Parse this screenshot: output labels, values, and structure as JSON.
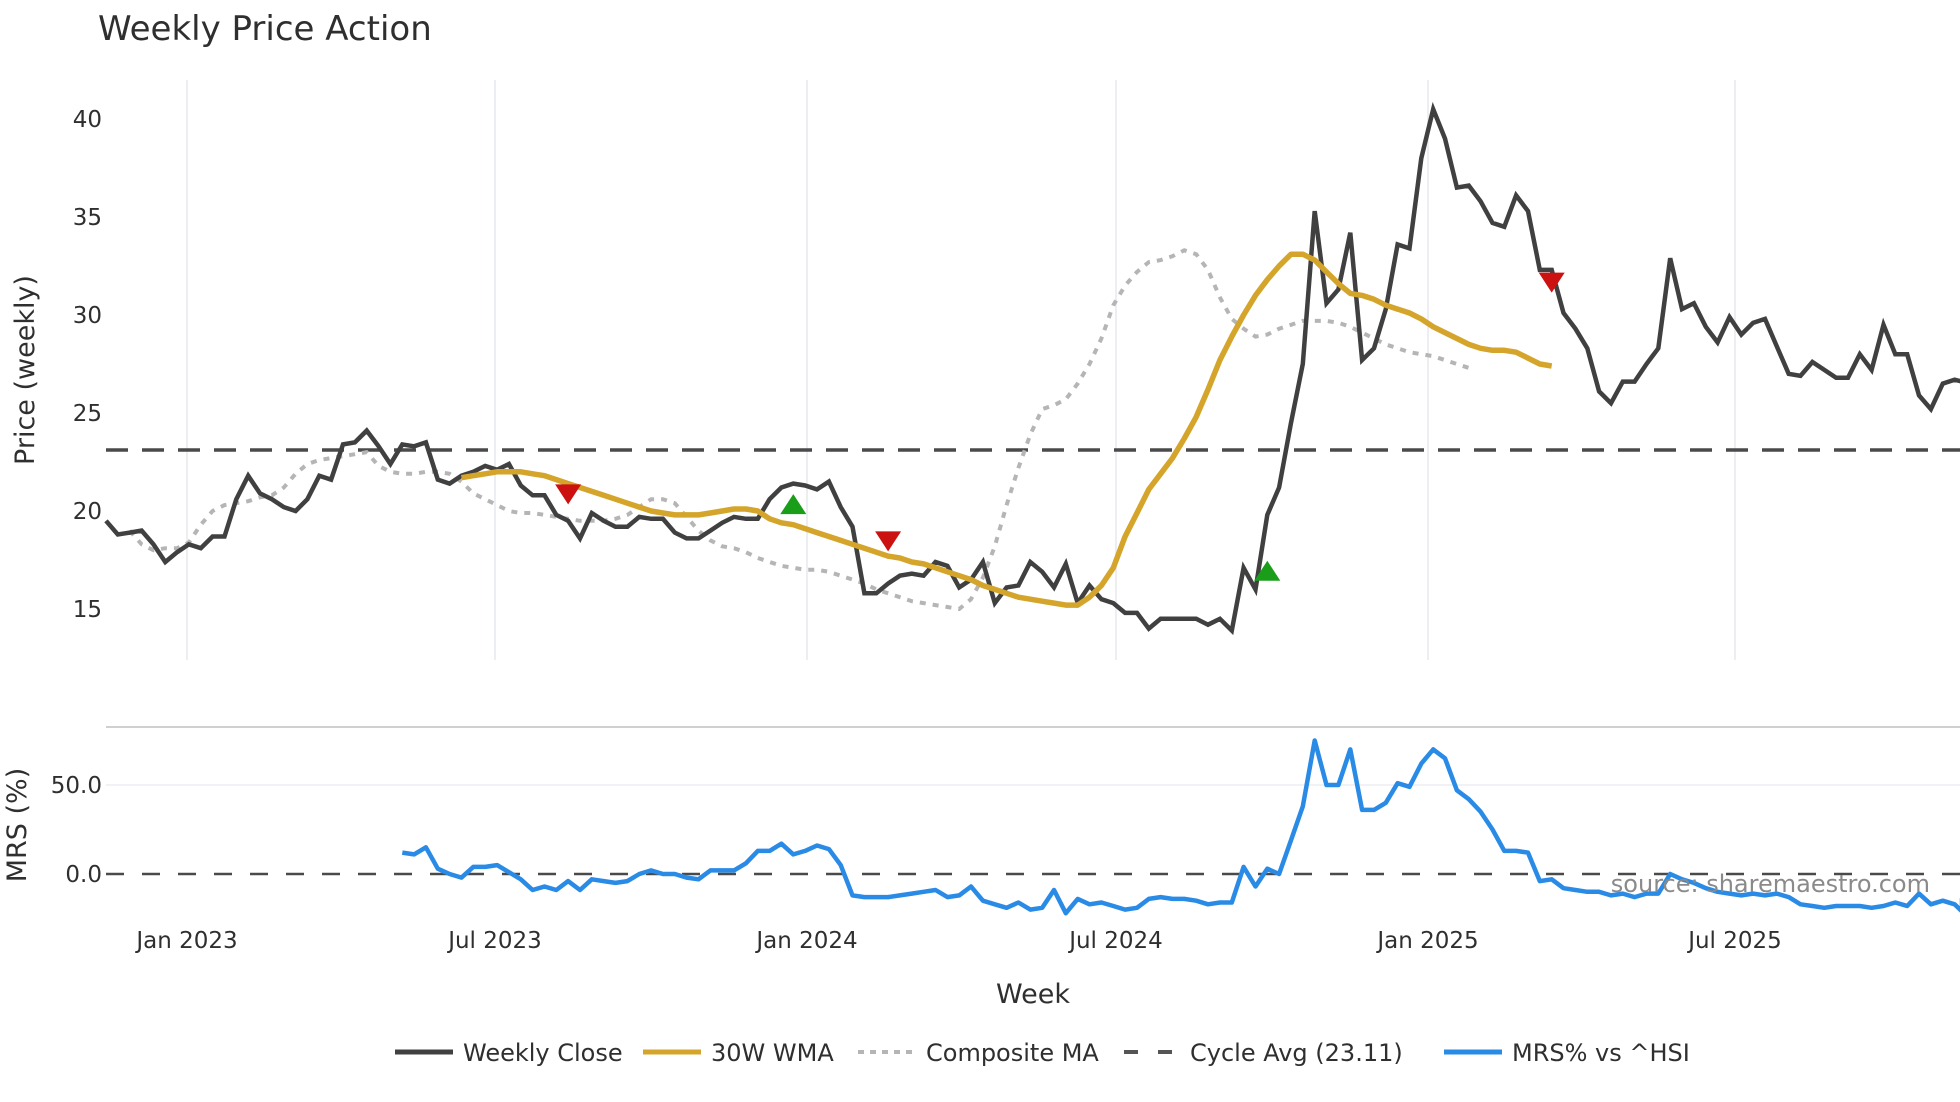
{
  "title": "Weekly Price Action",
  "top_panel": {
    "ylabel": "Price (weekly)",
    "yticks": [
      15,
      20,
      25,
      30,
      35,
      40
    ]
  },
  "bottom_panel": {
    "ylabel": "MRS (%)",
    "yticks": [
      "0.0",
      "50.0"
    ]
  },
  "xaxis": {
    "label": "Week",
    "ticks": [
      "Jan 2023",
      "Jul 2023",
      "Jan 2024",
      "Jul 2024",
      "Jan 2025",
      "Jul 2025"
    ]
  },
  "legend": {
    "items": [
      {
        "label": "Weekly Close",
        "color": "#404040",
        "style": "solid"
      },
      {
        "label": "30W WMA",
        "color": "#d4a52a",
        "style": "solid"
      },
      {
        "label": "Composite MA",
        "color": "#b5b5b5",
        "style": "dotted"
      },
      {
        "label": "Cycle Avg (23.11)",
        "color": "#555555",
        "style": "dashed"
      },
      {
        "label": "MRS% vs ^HSI",
        "color": "#2a8be6",
        "style": "solid"
      }
    ]
  },
  "source_note": "source: sharemaestro.com",
  "colors": {
    "close": "#404040",
    "wma": "#d4a52a",
    "composite": "#b5b5b5",
    "cycle": "#4a4a4a",
    "mrs": "#2a8be6",
    "buy": "#1a9e1a",
    "sell": "#cc1111",
    "grid": "#e8eaee"
  },
  "chart_data": [
    {
      "type": "line",
      "title": "Weekly Price Action",
      "xlabel": "Week",
      "ylabel": "Price (weekly)",
      "ylim": [
        12.5,
        42
      ],
      "x_ticks": [
        "Jan 2023",
        "Jul 2023",
        "Jan 2024",
        "Jul 2024",
        "Jan 2025",
        "Jul 2025"
      ],
      "x_range": [
        "Nov 2022",
        "Nov 2025"
      ],
      "grid": "vertical",
      "legend_position": "bottom",
      "cycle_avg": 23.11,
      "series": [
        {
          "name": "Weekly Close",
          "values": [
            19.5,
            18.8,
            18.9,
            19.0,
            18.3,
            17.4,
            17.9,
            18.3,
            18.1,
            18.7,
            18.7,
            20.6,
            21.8,
            20.9,
            20.6,
            20.2,
            20.0,
            20.6,
            21.8,
            21.6,
            23.4,
            23.5,
            24.1,
            23.3,
            22.4,
            23.4,
            23.3,
            23.5,
            21.6,
            21.4,
            21.8,
            22.0,
            22.3,
            22.1,
            22.4,
            21.3,
            20.8,
            20.8,
            19.8,
            19.5,
            18.6,
            19.9,
            19.5,
            19.2,
            19.2,
            19.7,
            19.6,
            19.6,
            18.9,
            18.6,
            18.6,
            19.0,
            19.4,
            19.7,
            19.6,
            19.6,
            20.6,
            21.2,
            21.4,
            21.3,
            21.1,
            21.5,
            20.2,
            19.2,
            15.8,
            15.8,
            16.3,
            16.7,
            16.8,
            16.7,
            17.4,
            17.2,
            16.1,
            16.5,
            17.4,
            15.3,
            16.1,
            16.2,
            17.4,
            16.9,
            16.1,
            17.3,
            15.3,
            16.2,
            15.5,
            15.3,
            14.8,
            14.8,
            14.0,
            14.5,
            14.5,
            14.5,
            14.5,
            14.2,
            14.5,
            13.9,
            17.1,
            16.0,
            19.8,
            21.2,
            24.5,
            27.5,
            35.3,
            30.6,
            31.3,
            34.2,
            27.7,
            28.3,
            30.3,
            33.6,
            33.4,
            38.0,
            40.5,
            39.0,
            36.5,
            36.6,
            35.8,
            34.7,
            34.5,
            36.1,
            35.3,
            32.3,
            32.3,
            30.1,
            29.3,
            28.3,
            26.1,
            25.5,
            26.6,
            26.6,
            27.5,
            28.3,
            32.9,
            30.3,
            30.6,
            29.4,
            28.6,
            29.9,
            29.0,
            29.6,
            29.8,
            28.4,
            27.0,
            26.9,
            27.6,
            27.2,
            26.8,
            26.8,
            28.0,
            27.2,
            29.5,
            28.0,
            28.0,
            25.9,
            25.2,
            26.5,
            26.7,
            26.6
          ]
        },
        {
          "name": "30W WMA",
          "start_index": 30,
          "values": [
            21.7,
            21.8,
            21.9,
            22.0,
            22.0,
            22.0,
            21.9,
            21.8,
            21.6,
            21.4,
            21.2,
            21.0,
            20.8,
            20.6,
            20.4,
            20.2,
            20.0,
            19.9,
            19.8,
            19.8,
            19.8,
            19.9,
            20.0,
            20.1,
            20.1,
            20.0,
            19.6,
            19.4,
            19.3,
            19.1,
            18.9,
            18.7,
            18.5,
            18.3,
            18.1,
            17.9,
            17.7,
            17.6,
            17.4,
            17.3,
            17.1,
            16.9,
            16.7,
            16.5,
            16.2,
            16.0,
            15.8,
            15.6,
            15.5,
            15.4,
            15.3,
            15.2,
            15.2,
            15.6,
            16.2,
            17.1,
            18.7,
            19.9,
            21.1,
            21.9,
            22.7,
            23.7,
            24.8,
            26.2,
            27.7,
            28.9,
            30.0,
            31.0,
            31.8,
            32.5,
            33.1,
            33.1,
            32.8,
            32.2,
            31.6,
            31.1,
            31.0,
            30.8,
            30.5,
            30.3,
            30.1,
            29.8,
            29.4,
            29.1,
            28.8,
            28.5,
            28.3,
            28.2,
            28.2,
            28.1,
            27.8,
            27.5,
            27.4
          ]
        },
        {
          "name": "Composite MA",
          "start_index": 2,
          "values": [
            null,
            null,
            19.0,
            18.3,
            18.0,
            18.1,
            18.1,
            18.4,
            19.3,
            20.0,
            20.3,
            20.4,
            20.5,
            20.7,
            20.8,
            21.2,
            21.9,
            22.4,
            22.6,
            22.7,
            22.8,
            22.9,
            23.0,
            22.3,
            22.0,
            21.9,
            21.9,
            22.0,
            22.0,
            21.9,
            21.5,
            20.9,
            20.6,
            20.3,
            20.0,
            19.9,
            19.9,
            19.8,
            19.7,
            19.6,
            19.5,
            19.5,
            19.5,
            19.6,
            19.8,
            20.2,
            20.6,
            20.6,
            20.4,
            19.7,
            19.0,
            18.5,
            18.2,
            18.1,
            17.9,
            17.6,
            17.4,
            17.2,
            17.1,
            17.0,
            17.0,
            16.9,
            16.7,
            16.5,
            16.3,
            16.0,
            15.8,
            15.6,
            15.4,
            15.3,
            15.2,
            15.1,
            15.0,
            15.5,
            16.6,
            18.2,
            20.3,
            22.2,
            23.9,
            25.2,
            25.4,
            25.7,
            26.5,
            27.5,
            28.8,
            30.5,
            31.5,
            32.2,
            32.7,
            32.8,
            33.0,
            33.3,
            33.1,
            32.3,
            30.9,
            29.8,
            29.3,
            28.9,
            29.0,
            29.3,
            29.5,
            29.7,
            29.7,
            29.7,
            29.6,
            29.4,
            29.1,
            28.8,
            28.5,
            28.3,
            28.1,
            28.0,
            27.9,
            27.7,
            27.5,
            27.3
          ]
        },
        {
          "name": "Cycle Avg (23.11)",
          "values": [
            23.11
          ]
        }
      ],
      "signals": [
        {
          "type": "sell",
          "index": 39,
          "value": 20.9
        },
        {
          "type": "buy",
          "index": 58,
          "value": 20.3
        },
        {
          "type": "sell",
          "index": 66,
          "value": 18.5
        },
        {
          "type": "buy",
          "index": 98,
          "value": 16.9
        },
        {
          "type": "sell",
          "index": 122,
          "value": 31.7
        }
      ]
    },
    {
      "type": "line",
      "ylabel": "MRS (%)",
      "ylim": [
        -30,
        85
      ],
      "yticks": [
        0.0,
        50.0
      ],
      "zero_line": "dashed",
      "series": [
        {
          "name": "MRS% vs ^HSI",
          "start_index": 25,
          "values": [
            12,
            11,
            15,
            3,
            0,
            -2,
            4,
            4,
            5,
            1,
            -3,
            -9,
            -7,
            -9,
            -4,
            -9,
            -3,
            -4,
            -5,
            -4,
            0,
            2,
            0,
            0,
            -2,
            -3,
            2,
            2,
            2,
            6,
            13,
            13,
            17,
            11,
            13,
            16,
            14,
            5,
            -12,
            -13,
            -13,
            -13,
            -12,
            -11,
            -10,
            -9,
            -13,
            -12,
            -7,
            -15,
            -17,
            -19,
            -16,
            -20,
            -19,
            -9,
            -22,
            -14,
            -17,
            -16,
            -18,
            -20,
            -19,
            -14,
            -13,
            -14,
            -14,
            -15,
            -17,
            -16,
            -16,
            4,
            -7,
            3,
            0,
            19,
            38,
            75,
            50,
            50,
            70,
            36,
            36,
            40,
            51,
            49,
            62,
            70,
            65,
            47,
            42,
            35,
            25,
            13,
            13,
            12,
            -4,
            -3,
            -8,
            -9,
            -10,
            -10,
            -12,
            -11,
            -13,
            -11,
            -11,
            0,
            -3,
            -5,
            -8,
            -10,
            -11,
            -12,
            -11,
            -12,
            -11,
            -13,
            -17,
            -18,
            -19,
            -18,
            -18,
            -18,
            -19,
            -18,
            -16,
            -18,
            -11,
            -17,
            -15,
            -17,
            -21,
            -17,
            -14,
            -15
          ]
        }
      ]
    }
  ]
}
